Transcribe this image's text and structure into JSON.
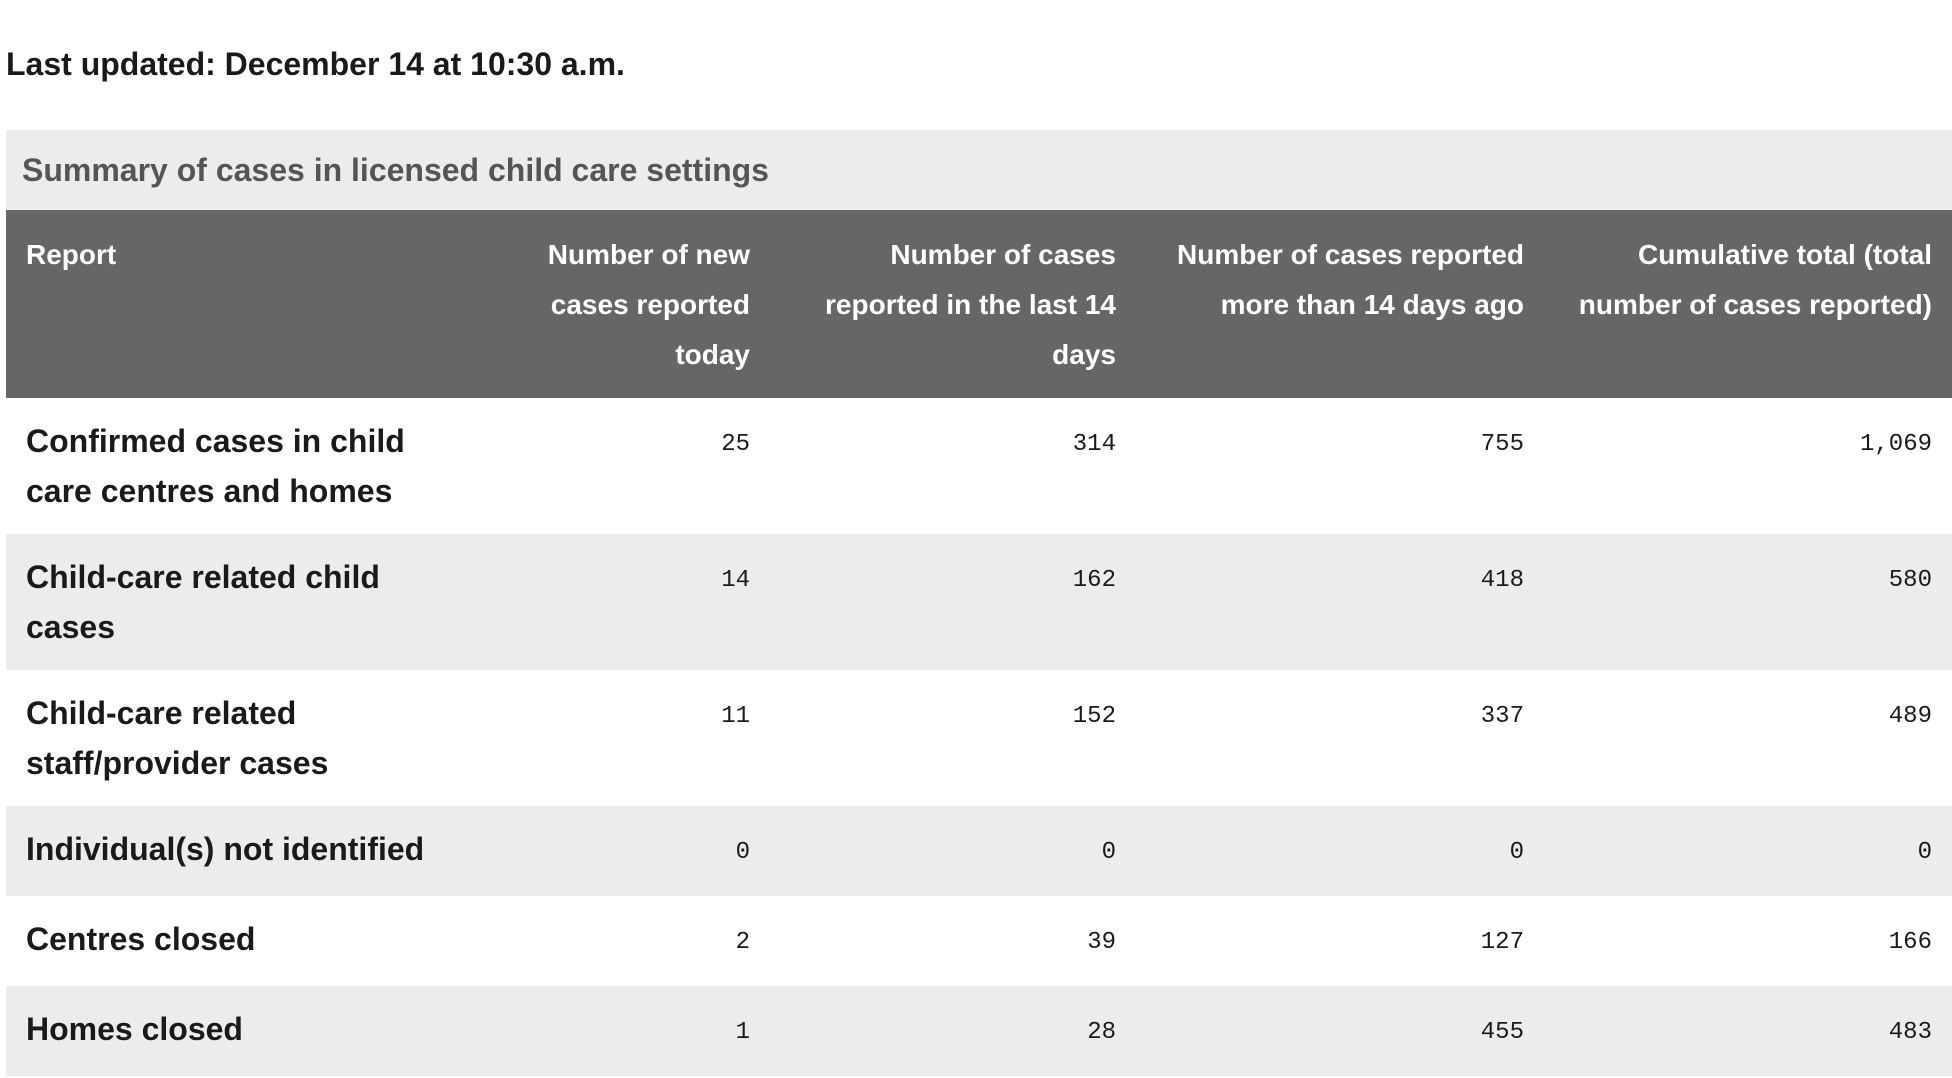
{
  "last_updated": "Last updated: December 14 at 10:30 a.m.",
  "table": {
    "caption": "Summary of cases in licensed child care settings",
    "headers": [
      "Report",
      "Number of new cases reported today",
      "Number of cases reported in the last 14 days",
      "Number of cases reported more than 14 days ago",
      "Cumulative total (total number of cases reported)"
    ],
    "rows": [
      {
        "label": "Confirmed cases in child care centres and homes",
        "today": "25",
        "last14": "314",
        "over14": "755",
        "total": "1,069"
      },
      {
        "label": "Child-care related child cases",
        "today": "14",
        "last14": "162",
        "over14": "418",
        "total": "580"
      },
      {
        "label": "Child-care related staff/provider cases",
        "today": "11",
        "last14": "152",
        "over14": "337",
        "total": "489"
      },
      {
        "label": "Individual(s) not identified",
        "today": "0",
        "last14": "0",
        "over14": "0",
        "total": "0"
      },
      {
        "label": "Centres closed",
        "today": "2",
        "last14": "39",
        "over14": "127",
        "total": "166"
      },
      {
        "label": "Homes closed",
        "today": "1",
        "last14": "28",
        "over14": "455",
        "total": "483"
      }
    ]
  },
  "colors": {
    "header_bg": "#666666",
    "caption_bg": "#ececec",
    "row_alt_bg": "#ececec"
  }
}
